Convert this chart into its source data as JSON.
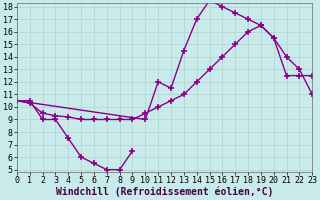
{
  "background_color": "#c8eaea",
  "grid_color": "#b8d8d8",
  "line_color": "#880088",
  "marker": "+",
  "markersize": 4,
  "linewidth": 1.0,
  "curve1_x": [
    0,
    1,
    2,
    3,
    4,
    5,
    6,
    7,
    8,
    9
  ],
  "curve1_y": [
    10.5,
    10.5,
    9.0,
    9.0,
    7.5,
    6.0,
    5.5,
    5.0,
    5.0,
    6.5
  ],
  "curve2_x": [
    0,
    1,
    2,
    3,
    4,
    5,
    6,
    7,
    8,
    9,
    10,
    11,
    12,
    13,
    14,
    15,
    16,
    17,
    18,
    19,
    20,
    21,
    22,
    23
  ],
  "curve2_y": [
    10.5,
    10.3,
    9.5,
    9.3,
    9.2,
    9.0,
    9.0,
    9.0,
    9.0,
    9.0,
    9.5,
    10.0,
    10.5,
    11.0,
    12.0,
    13.0,
    14.0,
    15.0,
    16.0,
    16.5,
    15.5,
    14.0,
    13.0,
    11.0
  ],
  "curve3_x": [
    0,
    10,
    11,
    12,
    13,
    14,
    15,
    16,
    17,
    18,
    19,
    20,
    21,
    22,
    23
  ],
  "curve3_y": [
    10.5,
    9.0,
    12.0,
    11.5,
    14.5,
    17.0,
    18.5,
    18.0,
    17.5,
    17.0,
    16.5,
    15.5,
    12.5,
    12.5,
    12.5
  ],
  "xlabel": "Windchill (Refroidissement éolien,°C)",
  "xlim": [
    0,
    23
  ],
  "ylim": [
    5,
    18
  ],
  "xticks": [
    0,
    1,
    2,
    3,
    4,
    5,
    6,
    7,
    8,
    9,
    10,
    11,
    12,
    13,
    14,
    15,
    16,
    17,
    18,
    19,
    20,
    21,
    22,
    23
  ],
  "yticks": [
    5,
    6,
    7,
    8,
    9,
    10,
    11,
    12,
    13,
    14,
    15,
    16,
    17,
    18
  ],
  "xlabel_fontsize": 7,
  "tick_fontsize": 6
}
